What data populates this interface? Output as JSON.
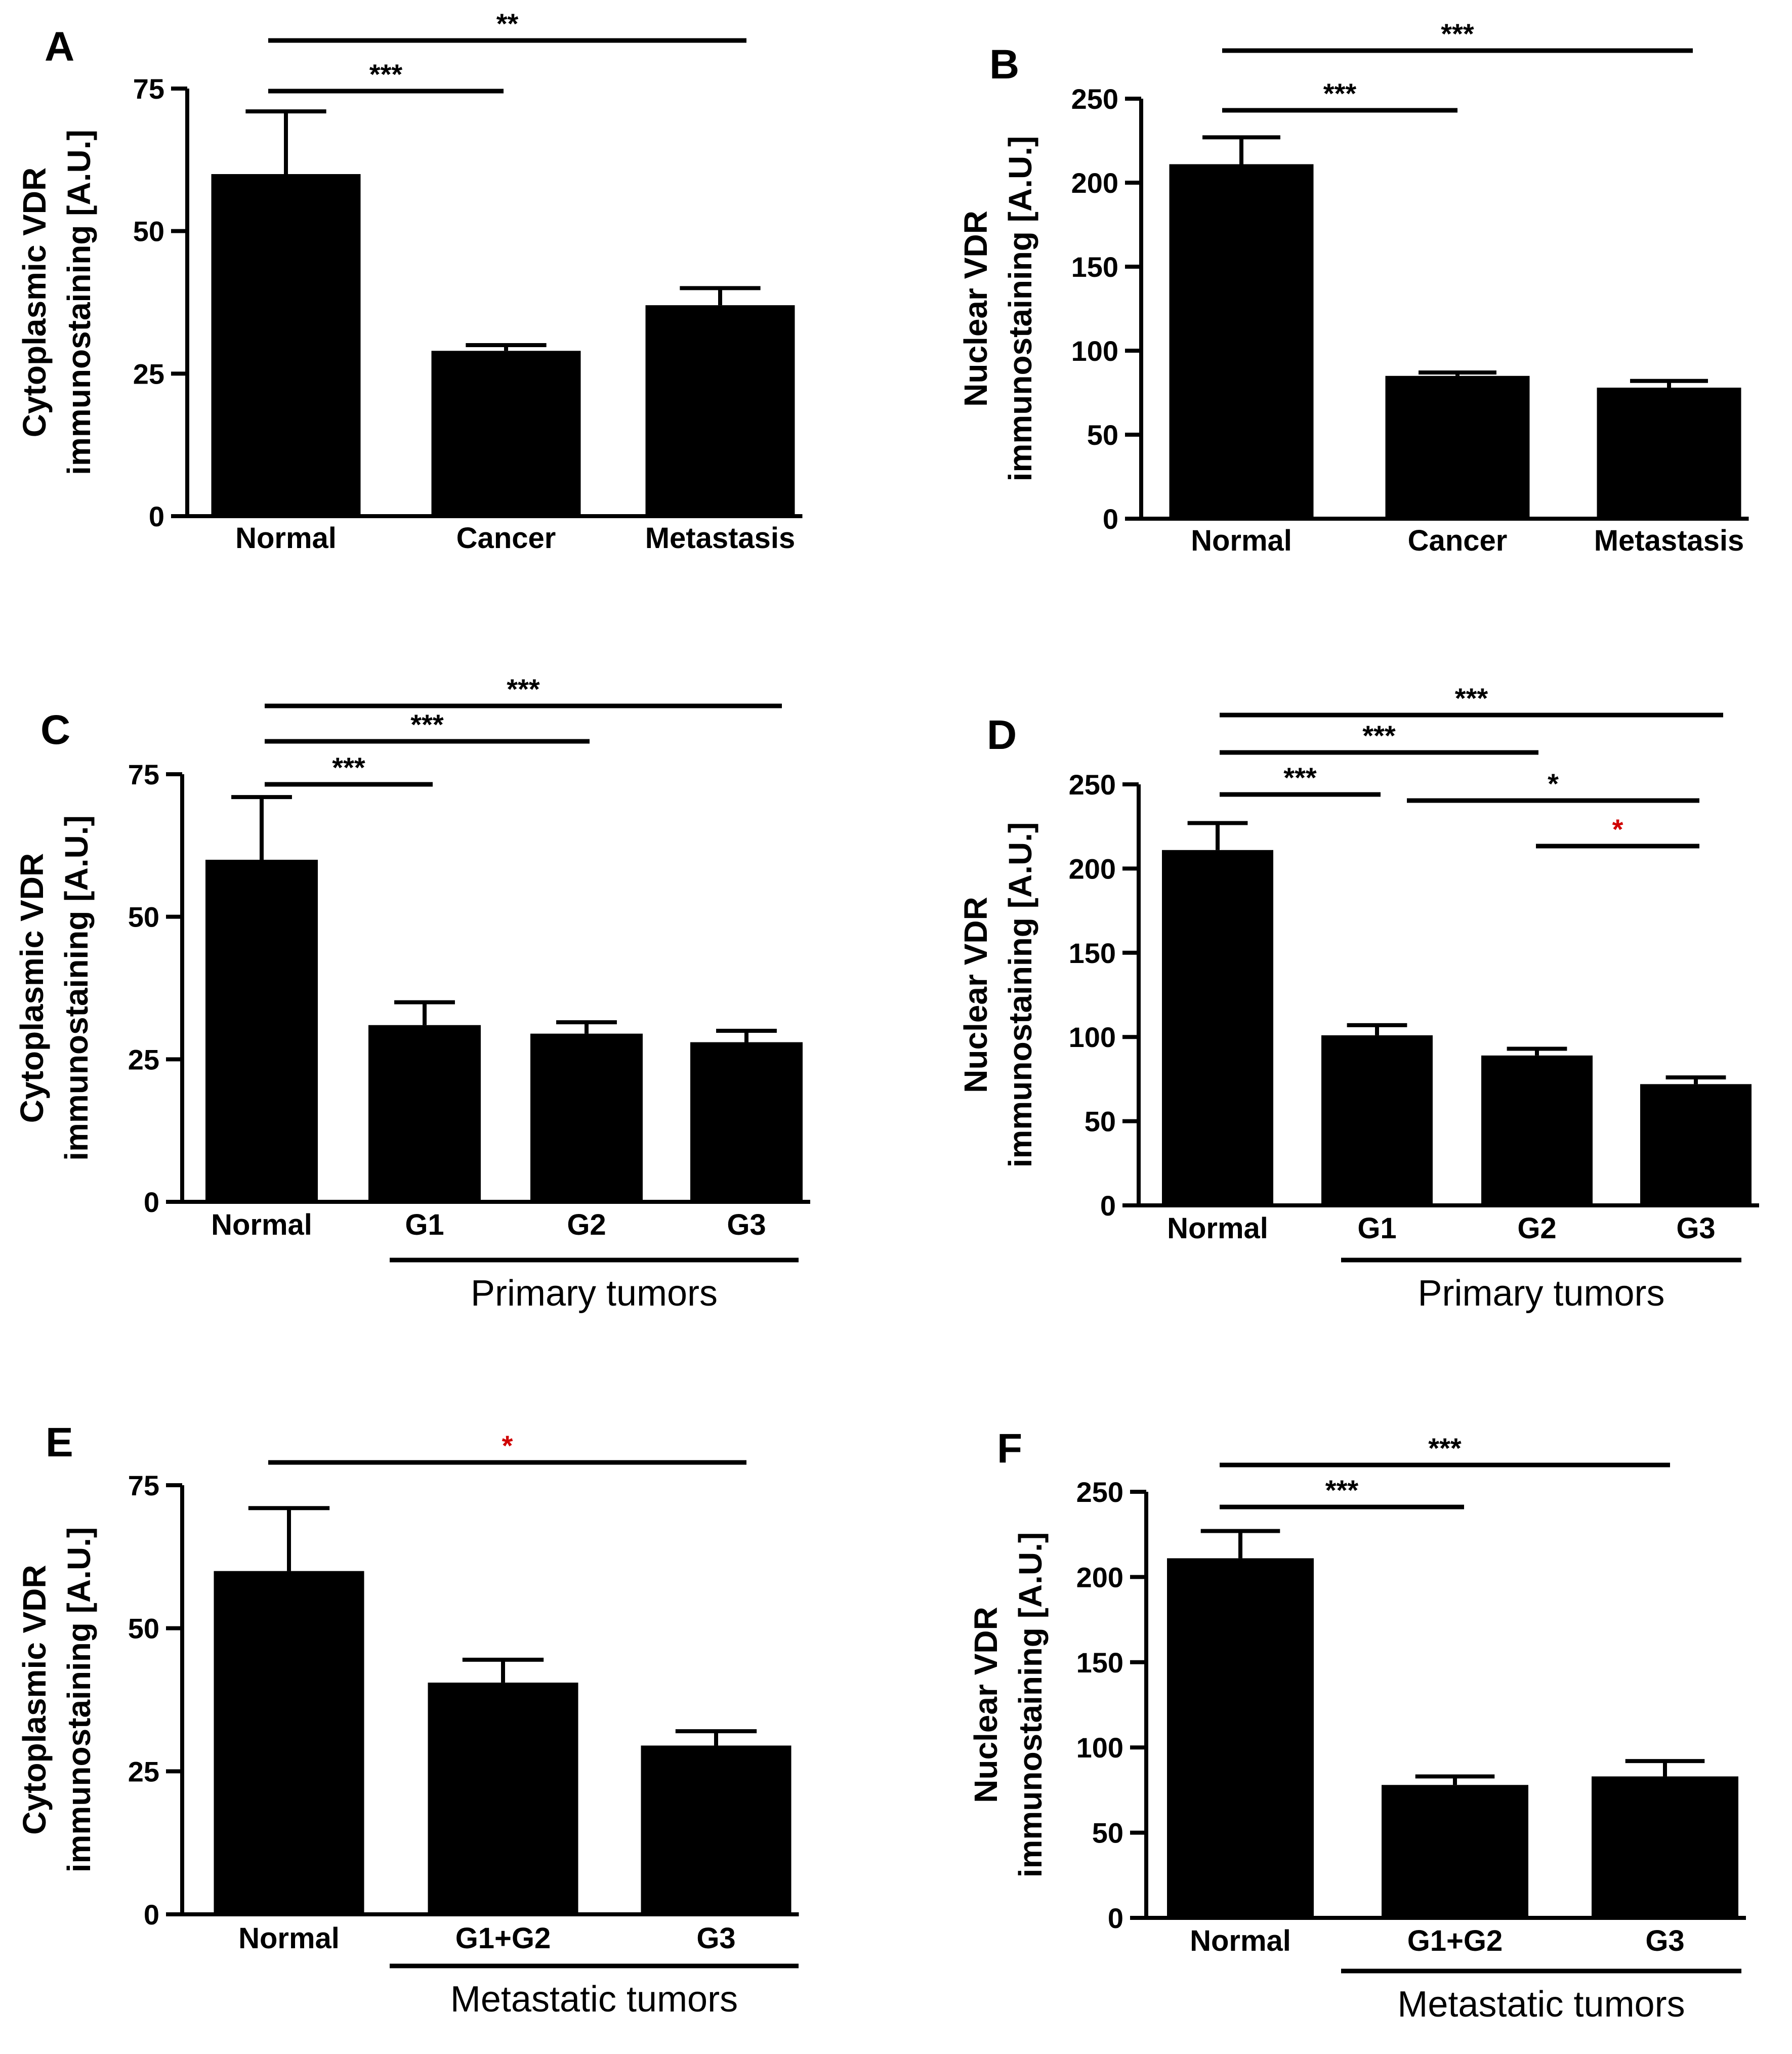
{
  "chart_data": [
    {
      "panel": "A",
      "type": "bar",
      "ylabel_line1": "Cytoplasmic VDR",
      "ylabel_line2": "immunostaining [A.U.]",
      "ylim": [
        0,
        75
      ],
      "yticks": [
        0,
        25,
        50,
        75
      ],
      "categories": [
        "Normal",
        "Cancer",
        "Metastasis"
      ],
      "values": [
        60,
        29,
        37
      ],
      "errors": [
        11,
        1,
        3
      ],
      "group_label": null,
      "significance": [
        {
          "from": 0,
          "to": 1,
          "label": "***",
          "color": "#000000"
        },
        {
          "from": 0,
          "to": 2,
          "label": "**",
          "color": "#000000"
        }
      ]
    },
    {
      "panel": "B",
      "type": "bar",
      "ylabel_line1": "Nuclear VDR",
      "ylabel_line2": "immunostaining [A.U.]",
      "ylim": [
        0,
        250
      ],
      "yticks": [
        0,
        50,
        100,
        150,
        200,
        250
      ],
      "categories": [
        "Normal",
        "Cancer",
        "Metastasis"
      ],
      "values": [
        211,
        85,
        78
      ],
      "errors": [
        16,
        2,
        4
      ],
      "group_label": null,
      "significance": [
        {
          "from": 0,
          "to": 1,
          "label": "***",
          "color": "#000000"
        },
        {
          "from": 0,
          "to": 2,
          "label": "***",
          "color": "#000000"
        }
      ]
    },
    {
      "panel": "C",
      "type": "bar",
      "ylabel_line1": "Cytoplasmic VDR",
      "ylabel_line2": "immunostaining [A.U.]",
      "ylim": [
        0,
        75
      ],
      "yticks": [
        0,
        25,
        50,
        75
      ],
      "categories": [
        "Normal",
        "G1",
        "G2",
        "G3"
      ],
      "values": [
        60,
        31,
        29.5,
        28
      ],
      "errors": [
        11,
        4,
        2,
        2
      ],
      "group_label": "Primary tumors",
      "group_from": 1,
      "significance": [
        {
          "from": 0,
          "to": 1,
          "label": "***",
          "color": "#000000"
        },
        {
          "from": 0,
          "to": 2,
          "label": "***",
          "color": "#000000"
        },
        {
          "from": 0,
          "to": 3,
          "label": "***",
          "color": "#000000"
        }
      ]
    },
    {
      "panel": "D",
      "type": "bar",
      "ylabel_line1": "Nuclear VDR",
      "ylabel_line2": "immunostaining [A.U.]",
      "ylim": [
        0,
        250
      ],
      "yticks": [
        0,
        50,
        100,
        150,
        200,
        250
      ],
      "categories": [
        "Normal",
        "G1",
        "G2",
        "G3"
      ],
      "values": [
        211,
        101,
        89,
        72
      ],
      "errors": [
        16,
        6,
        4,
        4
      ],
      "group_label": "Primary tumors",
      "group_from": 1,
      "significance": [
        {
          "from": 0,
          "to": 1,
          "label": "***",
          "color": "#000000"
        },
        {
          "from": 0,
          "to": 2,
          "label": "***",
          "color": "#000000"
        },
        {
          "from": 0,
          "to": 3,
          "label": "***",
          "color": "#000000"
        },
        {
          "from": 1,
          "to": 3,
          "label": "*",
          "color": "#000000"
        },
        {
          "from": 2,
          "to": 3,
          "label": "*",
          "color": "#d00000"
        }
      ]
    },
    {
      "panel": "E",
      "type": "bar",
      "ylabel_line1": "Cytoplasmic VDR",
      "ylabel_line2": "immunostaining [A.U.]",
      "ylim": [
        0,
        75
      ],
      "yticks": [
        0,
        25,
        50,
        75
      ],
      "categories": [
        "Normal",
        "G1+G2",
        "G3"
      ],
      "values": [
        60,
        40.5,
        29.5
      ],
      "errors": [
        11,
        4,
        2.5
      ],
      "group_label": "Metastatic tumors",
      "group_from": 1,
      "significance": [
        {
          "from": 0,
          "to": 2,
          "label": "*",
          "color": "#d00000"
        }
      ]
    },
    {
      "panel": "F",
      "type": "bar",
      "ylabel_line1": "Nuclear VDR",
      "ylabel_line2": "immunostaining [A.U.]",
      "ylim": [
        0,
        250
      ],
      "yticks": [
        0,
        50,
        100,
        150,
        200,
        250
      ],
      "categories": [
        "Normal",
        "G1+G2",
        "G3"
      ],
      "values": [
        211,
        78,
        83
      ],
      "errors": [
        16,
        5,
        9
      ],
      "group_label": "Metastatic tumors",
      "group_from": 1,
      "significance": [
        {
          "from": 0,
          "to": 1,
          "label": "***",
          "color": "#000000"
        },
        {
          "from": 0,
          "to": 2,
          "label": "***",
          "color": "#000000"
        }
      ]
    }
  ]
}
